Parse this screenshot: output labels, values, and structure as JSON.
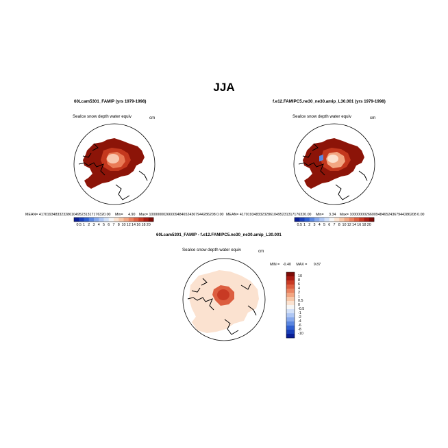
{
  "figure": {
    "title": "JJA"
  },
  "panels": [
    {
      "title": "60Lcam5301_FAMIP (yrs 1979-1998)",
      "field": "SeaIce snow depth water equiv",
      "units": "cm",
      "stats": {
        "mean_label": "MEAN=",
        "mean": "417019348332328610495231317176320.00",
        "min_label": "Min=",
        "min": "4.90",
        "max_label": "Max=",
        "max": "100000002660094846524367944286208 0.00"
      }
    },
    {
      "title": "f.e12.FAMIPC5.ne30_ne30.amip_L30.001 (yrs 1979-1998)",
      "field": "SeaIce snow depth water equiv",
      "units": "cm",
      "stats": {
        "mean_label": "MEAN=",
        "mean": "417019348332328610495231317176320.00",
        "min_label": "Min=",
        "min": "3.34",
        "max_label": "Max=",
        "max": "100000002660094846524367944286208 0.00"
      }
    },
    {
      "title": "60Lcam5301_FAMIP - f.e12.FAMIPC5.ne30_ne30.amip_L30.001",
      "field": "SeaIce snow depth water equiv",
      "units": "cm",
      "stats": {
        "min_label": "MIN =",
        "min": "-0.40",
        "max_label": "MAX =",
        "max": "9.87"
      }
    }
  ],
  "colorbar_top": {
    "labels": [
      "0.5",
      "1",
      "2",
      "3",
      "4",
      "5",
      "6",
      "7",
      "8",
      "10",
      "12",
      "14",
      "16",
      "18",
      "20"
    ],
    "colors": [
      "#0a1e96",
      "#1a3fb8",
      "#2f5fd0",
      "#5a86e0",
      "#86a8ec",
      "#aec6f4",
      "#d2e0f8",
      "#f6f6f6",
      "#fbe2d0",
      "#f7c7a8",
      "#f2a682",
      "#ea8260",
      "#dc5e40",
      "#c83a24",
      "#a81a12",
      "#7e0a06"
    ]
  },
  "colorbar_diff": {
    "labels": [
      "10",
      "8",
      "6",
      "4",
      "2",
      "1",
      "0.5",
      "0",
      "-0.5",
      "-1",
      "-2",
      "-4",
      "-6",
      "-8",
      "-10"
    ],
    "colors": [
      "#7e0a06",
      "#a81a12",
      "#c83a24",
      "#dc5e40",
      "#ea8260",
      "#f2a682",
      "#f7c7a8",
      "#fbe2d0",
      "#f6f6f6",
      "#d2e0f8",
      "#aec6f4",
      "#86a8ec",
      "#5a86e0",
      "#2f5fd0",
      "#1a3fb8",
      "#0a1e96"
    ]
  },
  "colors": {
    "ice_dark": "#8c1408",
    "ice_mid": "#c4381e",
    "ice_high": "#e97a56",
    "ice_peak": "#f8c8b0",
    "diff_light": "#fbe2d0",
    "diff_high": "#dc5e40",
    "diff_peak": "#c83a24",
    "coast": "#000000"
  }
}
